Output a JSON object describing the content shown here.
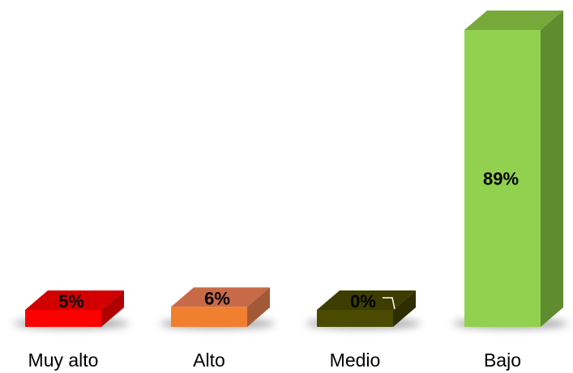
{
  "chart_data": {
    "type": "bar",
    "categories": [
      "Muy alto",
      "Alto",
      "Medio",
      "Bajo"
    ],
    "values": [
      5,
      6,
      0,
      89
    ],
    "value_labels": [
      "5%",
      "6%",
      "0%",
      "89%"
    ],
    "title": "",
    "xlabel": "",
    "ylabel": "",
    "ylim": [
      0,
      100
    ],
    "grid": false,
    "legend": "none",
    "style": "3d-column",
    "colors": {
      "Muy alto": {
        "front": "#ff0000",
        "top": "#d20000",
        "side": "#b00000"
      },
      "Alto": {
        "front": "#f08030",
        "top": "#c86a48",
        "side": "#a25a36"
      },
      "Medio": {
        "front": "#4a4a00",
        "top": "#3d3d00",
        "side": "#2e2e00"
      },
      "Bajo": {
        "front": "#92d050",
        "top": "#76a83a",
        "side": "#5f8c2f"
      }
    },
    "shadow_color": "#555555"
  }
}
